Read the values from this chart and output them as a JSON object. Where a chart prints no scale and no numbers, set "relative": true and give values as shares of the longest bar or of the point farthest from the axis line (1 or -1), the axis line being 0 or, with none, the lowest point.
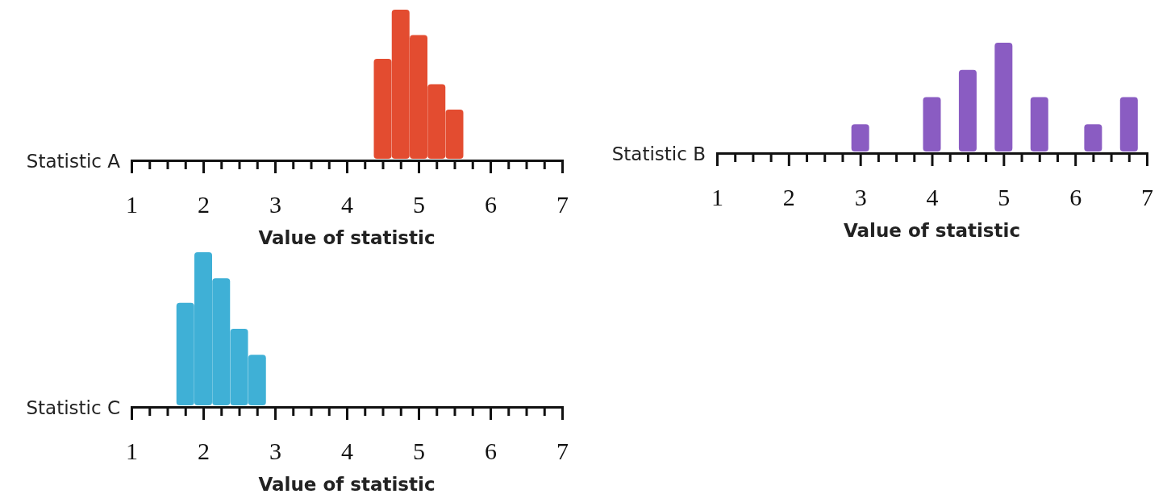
{
  "chart_data": [
    {
      "type": "bar",
      "relative": true,
      "ylabel": "Statistic A",
      "xlabel": "Value of statistic",
      "tick_labels": "x",
      "xlim": [
        1,
        7
      ],
      "xticks": [
        1,
        {
          "value": 1.25,
          "label": null
        },
        {
          "value": 1.5,
          "label": null
        },
        {
          "value": 1.75,
          "label": null
        },
        2,
        {
          "value": 2.25,
          "label": null
        },
        {
          "value": 2.5,
          "label": null
        },
        {
          "value": 2.75,
          "label": null
        },
        3,
        {
          "value": 3.25,
          "label": null
        },
        {
          "value": 3.5,
          "label": null
        },
        {
          "value": 3.75,
          "label": null
        },
        4,
        {
          "value": 4.25,
          "label": null
        },
        {
          "value": 4.5,
          "label": null
        },
        {
          "value": 4.75,
          "label": null
        },
        5,
        {
          "value": 5.25,
          "label": null
        },
        {
          "value": 5.5,
          "label": null
        },
        {
          "value": 5.75,
          "label": null
        },
        6,
        {
          "value": 6.25,
          "label": null
        },
        {
          "value": 6.5,
          "label": null
        },
        {
          "value": 6.75,
          "label": null
        },
        7
      ],
      "series": [
        {
          "color": "#e34c30",
          "x": [
            4.5,
            4.75,
            5,
            5.25,
            5.5
          ],
          "values": [
            0.67,
            1,
            0.83,
            0.5,
            0.33
          ]
        }
      ]
    },
    {
      "type": "bar",
      "relative": true,
      "ylabel": "Statistic B",
      "xlabel": "Value of statistic",
      "tick_labels": "x",
      "xlim": [
        1,
        7
      ],
      "xticks": [
        1,
        {
          "value": 1.25,
          "label": null
        },
        {
          "value": 1.5,
          "label": null
        },
        {
          "value": 1.75,
          "label": null
        },
        2,
        {
          "value": 2.25,
          "label": null
        },
        {
          "value": 2.5,
          "label": null
        },
        {
          "value": 2.75,
          "label": null
        },
        3,
        {
          "value": 3.25,
          "label": null
        },
        {
          "value": 3.5,
          "label": null
        },
        {
          "value": 3.75,
          "label": null
        },
        4,
        {
          "value": 4.25,
          "label": null
        },
        {
          "value": 4.5,
          "label": null
        },
        {
          "value": 4.75,
          "label": null
        },
        5,
        {
          "value": 5.25,
          "label": null
        },
        {
          "value": 5.5,
          "label": null
        },
        {
          "value": 5.75,
          "label": null
        },
        6,
        {
          "value": 6.25,
          "label": null
        },
        {
          "value": 6.5,
          "label": null
        },
        {
          "value": 6.75,
          "label": null
        },
        7
      ],
      "series": [
        {
          "color": "#8a5cc2",
          "x": [
            3,
            4,
            4.5,
            5,
            5.5,
            6.25,
            6.75
          ],
          "values": [
            0.25,
            0.5,
            0.75,
            1,
            0.5,
            0.25,
            0.5
          ]
        }
      ]
    },
    {
      "type": "bar",
      "relative": true,
      "ylabel": "Statistic C",
      "xlabel": "Value of statistic",
      "tick_labels": "x",
      "xlim": [
        1,
        7
      ],
      "xticks": [
        1,
        {
          "value": 1.25,
          "label": null
        },
        {
          "value": 1.5,
          "label": null
        },
        {
          "value": 1.75,
          "label": null
        },
        2,
        {
          "value": 2.25,
          "label": null
        },
        {
          "value": 2.5,
          "label": null
        },
        {
          "value": 2.75,
          "label": null
        },
        3,
        {
          "value": 3.25,
          "label": null
        },
        {
          "value": 3.5,
          "label": null
        },
        {
          "value": 3.75,
          "label": null
        },
        4,
        {
          "value": 4.25,
          "label": null
        },
        {
          "value": 4.5,
          "label": null
        },
        {
          "value": 4.75,
          "label": null
        },
        5,
        {
          "value": 5.25,
          "label": null
        },
        {
          "value": 5.5,
          "label": null
        },
        {
          "value": 5.75,
          "label": null
        },
        6,
        {
          "value": 6.25,
          "label": null
        },
        {
          "value": 6.5,
          "label": null
        },
        {
          "value": 6.75,
          "label": null
        },
        7
      ],
      "series": [
        {
          "color": "#3fb0d6",
          "x": [
            1.75,
            2,
            2.25,
            2.5,
            2.75
          ],
          "values": [
            0.67,
            1,
            0.83,
            0.5,
            0.33
          ]
        }
      ]
    }
  ]
}
